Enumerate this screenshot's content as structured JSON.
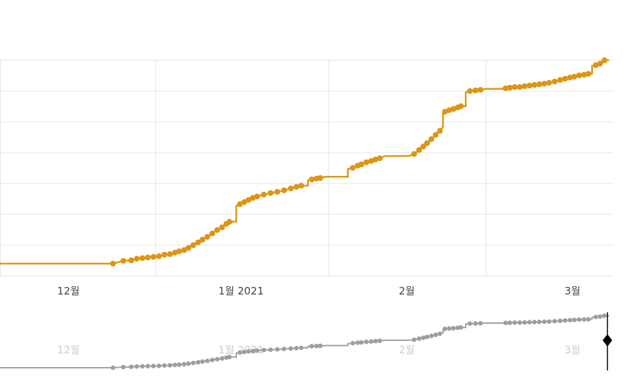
{
  "page": {
    "background": "#ffffff"
  },
  "colors": {
    "grid": "#e4e4e4",
    "axis_label": "#424242",
    "overview_label": "#cbcbcb"
  },
  "chart_data": {
    "type": "line",
    "variant": "stepped-cumulative-with-markers",
    "title": "",
    "legend": "none",
    "x_axis": {
      "tick_labels": [
        "12월",
        "1월 2021",
        "2월",
        "3월"
      ],
      "tick_fracs": [
        11.2,
        39.3,
        66.3,
        93.2
      ],
      "gridline_fracs": [
        0,
        25.3,
        53.5,
        79.2
      ]
    },
    "y_axis": {
      "tick_labels": [],
      "gridline_units": [
        0,
        1,
        2,
        3,
        4,
        5,
        6,
        7
      ],
      "note": "horizontal gridlines are unlabeled; series values given in gridline units 0-7"
    },
    "series": [
      {
        "id": "main",
        "color": "#de9514",
        "points": [
          [
            0,
            0.4,
            0
          ],
          [
            17.9,
            0.4,
            0
          ],
          [
            18.4,
            0.4,
            1
          ],
          [
            20.1,
            0.49,
            1
          ],
          [
            21.4,
            0.51,
            1
          ],
          [
            22.3,
            0.56,
            1
          ],
          [
            23.2,
            0.58,
            1
          ],
          [
            24.1,
            0.6,
            1
          ],
          [
            25,
            0.62,
            1
          ],
          [
            25.9,
            0.64,
            1
          ],
          [
            26.8,
            0.69,
            1
          ],
          [
            27.7,
            0.71,
            1
          ],
          [
            28.5,
            0.76,
            1
          ],
          [
            29.2,
            0.8,
            1
          ],
          [
            30,
            0.84,
            1
          ],
          [
            30.7,
            0.91,
            1
          ],
          [
            31.5,
            1,
            1
          ],
          [
            32.3,
            1.09,
            1
          ],
          [
            33,
            1.18,
            1
          ],
          [
            33.8,
            1.27,
            1
          ],
          [
            34.6,
            1.38,
            1
          ],
          [
            35.4,
            1.49,
            1
          ],
          [
            36.2,
            1.58,
            1
          ],
          [
            36.9,
            1.69,
            1
          ],
          [
            37.4,
            1.76,
            1
          ],
          [
            38.5,
            1.76,
            0
          ],
          [
            38.5,
            2.27,
            0
          ],
          [
            39.1,
            2.33,
            1
          ],
          [
            39.8,
            2.4,
            1
          ],
          [
            40.5,
            2.47,
            1
          ],
          [
            41.2,
            2.53,
            1
          ],
          [
            41.9,
            2.58,
            1
          ],
          [
            43,
            2.64,
            1
          ],
          [
            44.1,
            2.69,
            1
          ],
          [
            45.2,
            2.73,
            1
          ],
          [
            46.3,
            2.78,
            1
          ],
          [
            47.4,
            2.84,
            1
          ],
          [
            48.3,
            2.89,
            1
          ],
          [
            49.1,
            2.93,
            1
          ],
          [
            50.2,
            2.93,
            0
          ],
          [
            50.2,
            3.11,
            0
          ],
          [
            50.8,
            3.13,
            1
          ],
          [
            51.6,
            3.16,
            1
          ],
          [
            52.2,
            3.18,
            1
          ],
          [
            53,
            3.22,
            0
          ],
          [
            56.7,
            3.22,
            0
          ],
          [
            56.7,
            3.47,
            0
          ],
          [
            57.5,
            3.51,
            1
          ],
          [
            58.3,
            3.58,
            1
          ],
          [
            58.9,
            3.62,
            1
          ],
          [
            59.7,
            3.69,
            1
          ],
          [
            60.5,
            3.73,
            1
          ],
          [
            61.2,
            3.78,
            1
          ],
          [
            61.9,
            3.82,
            1
          ],
          [
            62.7,
            3.89,
            0
          ],
          [
            66.6,
            3.89,
            0
          ],
          [
            67.5,
            3.96,
            1
          ],
          [
            68.3,
            4.09,
            1
          ],
          [
            69,
            4.2,
            1
          ],
          [
            69.6,
            4.31,
            1
          ],
          [
            70.3,
            4.44,
            1
          ],
          [
            71,
            4.58,
            1
          ],
          [
            71.7,
            4.71,
            1
          ],
          [
            72.2,
            4.84,
            0
          ],
          [
            72.2,
            5.29,
            0
          ],
          [
            72.5,
            5.33,
            1
          ],
          [
            73.2,
            5.38,
            1
          ],
          [
            73.9,
            5.42,
            1
          ],
          [
            74.6,
            5.47,
            1
          ],
          [
            75.1,
            5.51,
            1
          ],
          [
            75.9,
            5.51,
            0
          ],
          [
            75.9,
            5.96,
            0
          ],
          [
            76.6,
            6,
            1
          ],
          [
            77.5,
            6.02,
            1
          ],
          [
            78.3,
            6.04,
            1
          ],
          [
            79.2,
            6.07,
            0
          ],
          [
            81.8,
            6.07,
            0
          ],
          [
            82.4,
            6.09,
            1
          ],
          [
            83.1,
            6.11,
            1
          ],
          [
            83.9,
            6.13,
            1
          ],
          [
            84.7,
            6.13,
            1
          ],
          [
            85.5,
            6.16,
            1
          ],
          [
            86.3,
            6.18,
            1
          ],
          [
            87.1,
            6.2,
            1
          ],
          [
            87.9,
            6.22,
            1
          ],
          [
            88.7,
            6.24,
            1
          ],
          [
            89.5,
            6.27,
            1
          ],
          [
            90.4,
            6.31,
            1
          ],
          [
            91.3,
            6.36,
            1
          ],
          [
            92.1,
            6.4,
            1
          ],
          [
            92.9,
            6.44,
            1
          ],
          [
            93.6,
            6.47,
            1
          ],
          [
            94.4,
            6.51,
            1
          ],
          [
            95.2,
            6.53,
            1
          ],
          [
            95.9,
            6.56,
            1
          ],
          [
            96.5,
            6.56,
            0
          ],
          [
            96.5,
            6.82,
            0
          ],
          [
            97.1,
            6.84,
            1
          ],
          [
            97.8,
            6.89,
            1
          ],
          [
            98.2,
            6.91,
            0
          ],
          [
            98.2,
            7,
            0
          ],
          [
            98.5,
            7,
            1
          ],
          [
            99.3,
            7,
            0
          ]
        ]
      }
    ],
    "overview": {
      "id": "range-selector",
      "color": "#9e9e9e",
      "uses_same_points": true,
      "x_tick_labels": [
        "12월",
        "1월 2021",
        "2월",
        "3월"
      ],
      "handle": {
        "shape": "diamond",
        "color": "#000000",
        "x_frac": 99.0
      }
    }
  }
}
